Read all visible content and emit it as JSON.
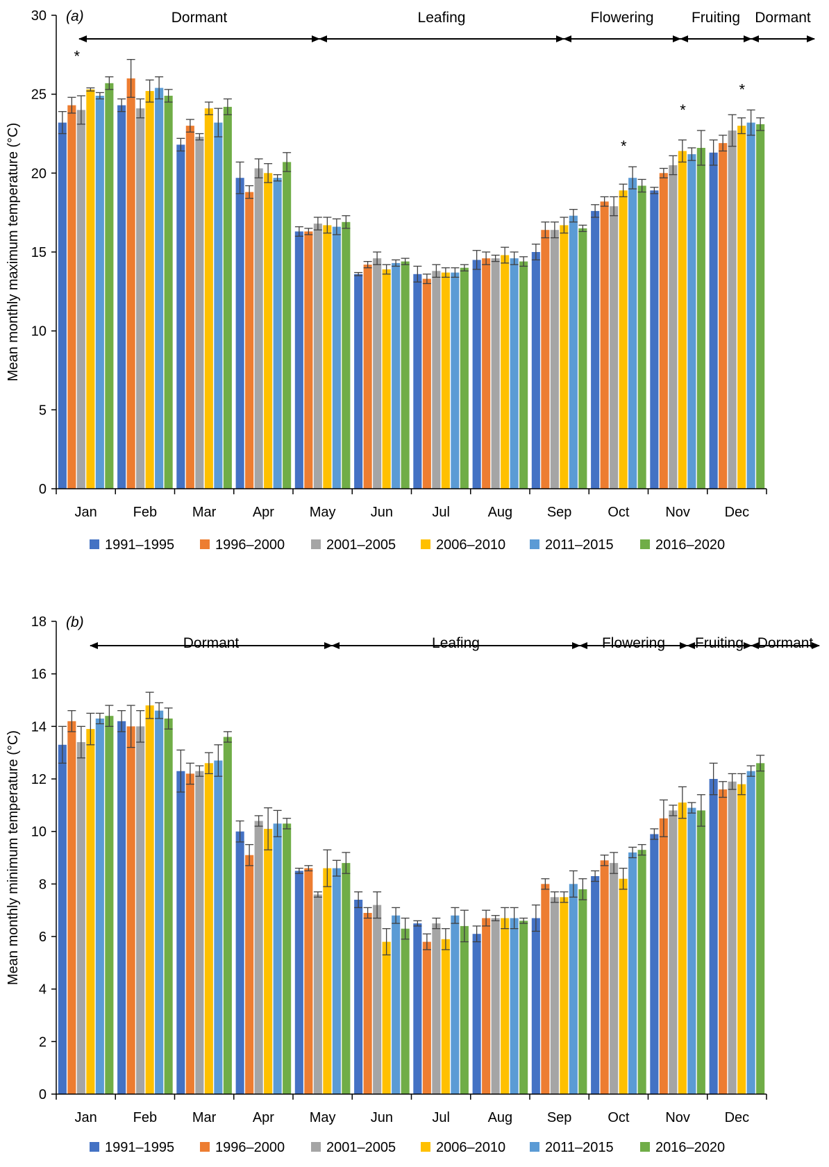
{
  "colors": {
    "series": [
      "#4472C4",
      "#ED7D31",
      "#A5A5A5",
      "#FFC000",
      "#5B9BD5",
      "#70AD47"
    ],
    "axis": "#000000",
    "errorbar": "#404040"
  },
  "chart_data": [
    {
      "type": "bar",
      "panel_label": "(a)",
      "ylabel": "Mean monthly maximum temperature (°C)",
      "ylim": [
        0,
        30
      ],
      "yticks": [
        0,
        5,
        10,
        15,
        20,
        25,
        30
      ],
      "categories": [
        "Jan",
        "Feb",
        "Mar",
        "Apr",
        "May",
        "Jun",
        "Jul",
        "Aug",
        "Sep",
        "Oct",
        "Nov",
        "Dec"
      ],
      "series": [
        {
          "name": "1991–1995",
          "values": [
            23.2,
            24.3,
            21.8,
            19.7,
            16.3,
            13.6,
            13.6,
            14.5,
            15.0,
            17.6,
            18.9,
            21.3
          ],
          "errors": [
            0.7,
            0.4,
            0.4,
            1.0,
            0.3,
            0.1,
            0.5,
            0.6,
            0.5,
            0.4,
            0.2,
            0.8
          ]
        },
        {
          "name": "1996–2000",
          "values": [
            24.3,
            26.0,
            23.0,
            18.8,
            16.3,
            14.2,
            13.3,
            14.6,
            16.4,
            18.2,
            20.0,
            21.9
          ],
          "errors": [
            0.5,
            1.2,
            0.4,
            0.4,
            0.2,
            0.2,
            0.3,
            0.4,
            0.5,
            0.3,
            0.3,
            0.5
          ]
        },
        {
          "name": "2001–2005",
          "values": [
            24.0,
            24.1,
            22.3,
            20.3,
            16.8,
            14.6,
            13.8,
            14.6,
            16.4,
            17.9,
            20.5,
            22.7
          ],
          "errors": [
            0.9,
            0.6,
            0.2,
            0.6,
            0.4,
            0.4,
            0.4,
            0.2,
            0.5,
            0.6,
            0.6,
            1.0
          ]
        },
        {
          "name": "2006–2010",
          "values": [
            25.3,
            25.2,
            24.1,
            20.0,
            16.7,
            13.9,
            13.7,
            14.8,
            16.7,
            18.9,
            21.4,
            23.0
          ],
          "errors": [
            0.1,
            0.7,
            0.4,
            0.6,
            0.5,
            0.3,
            0.3,
            0.5,
            0.5,
            0.4,
            0.7,
            0.5
          ]
        },
        {
          "name": "2011–2015",
          "values": [
            24.9,
            25.4,
            23.2,
            19.7,
            16.6,
            14.3,
            13.7,
            14.6,
            17.3,
            19.7,
            21.2,
            23.2
          ],
          "errors": [
            0.2,
            0.7,
            0.9,
            0.2,
            0.5,
            0.2,
            0.3,
            0.4,
            0.4,
            0.7,
            0.4,
            0.8
          ]
        },
        {
          "name": "2016–2020",
          "values": [
            25.7,
            24.9,
            24.2,
            20.7,
            16.9,
            14.4,
            14.0,
            14.4,
            16.5,
            19.2,
            21.6,
            23.1
          ],
          "errors": [
            0.4,
            0.4,
            0.5,
            0.6,
            0.4,
            0.2,
            0.2,
            0.3,
            0.2,
            0.4,
            1.1,
            0.4
          ]
        }
      ],
      "stages": [
        {
          "label": "Dormant",
          "from": 0,
          "to": 4
        },
        {
          "label": "Leafing",
          "from": 4,
          "to": 8
        },
        {
          "label": "Flowering",
          "from": 8,
          "to": 10
        },
        {
          "label": "Fruiting",
          "from": 10,
          "to": 11
        },
        {
          "label": "Dormant",
          "from": 11,
          "to": 12
        }
      ],
      "significance": [
        {
          "month": 0,
          "label": "*"
        },
        {
          "month": 9,
          "label": "*"
        },
        {
          "month": 10,
          "label": "*"
        },
        {
          "month": 11,
          "label": "*"
        }
      ],
      "legend_position": "bottom"
    },
    {
      "type": "bar",
      "panel_label": "(b)",
      "ylabel": "Mean monthly minimum temperature (°C)",
      "ylim": [
        0,
        18
      ],
      "yticks": [
        0,
        2,
        4,
        6,
        8,
        10,
        12,
        14,
        16,
        18
      ],
      "categories": [
        "Jan",
        "Feb",
        "Mar",
        "Apr",
        "May",
        "Jun",
        "Jul",
        "Aug",
        "Sep",
        "Oct",
        "Nov",
        "Dec"
      ],
      "series": [
        {
          "name": "1991–1995",
          "values": [
            13.3,
            14.2,
            12.3,
            10.0,
            8.5,
            7.4,
            6.5,
            6.1,
            6.7,
            8.3,
            9.9,
            12.0
          ],
          "errors": [
            0.7,
            0.4,
            0.8,
            0.4,
            0.1,
            0.3,
            0.1,
            0.3,
            0.5,
            0.2,
            0.2,
            0.6
          ]
        },
        {
          "name": "1996–2000",
          "values": [
            14.2,
            14.0,
            12.2,
            9.1,
            8.6,
            6.9,
            5.8,
            6.7,
            8.0,
            8.9,
            10.5,
            11.6
          ],
          "errors": [
            0.4,
            0.8,
            0.4,
            0.4,
            0.1,
            0.2,
            0.3,
            0.3,
            0.2,
            0.2,
            0.7,
            0.3
          ]
        },
        {
          "name": "2001–2005",
          "values": [
            13.4,
            14.0,
            12.3,
            10.4,
            7.6,
            7.2,
            6.5,
            6.7,
            7.5,
            8.8,
            10.8,
            11.9
          ],
          "errors": [
            0.6,
            0.6,
            0.2,
            0.2,
            0.1,
            0.5,
            0.2,
            0.1,
            0.2,
            0.4,
            0.2,
            0.3
          ]
        },
        {
          "name": "2006–2010",
          "values": [
            13.9,
            14.8,
            12.6,
            10.1,
            8.6,
            5.8,
            5.9,
            6.7,
            7.5,
            8.2,
            11.1,
            11.8
          ],
          "errors": [
            0.6,
            0.5,
            0.4,
            0.8,
            0.7,
            0.5,
            0.4,
            0.4,
            0.2,
            0.4,
            0.6,
            0.4
          ]
        },
        {
          "name": "2011–2015",
          "values": [
            14.3,
            14.6,
            12.7,
            10.3,
            8.6,
            6.8,
            6.8,
            6.7,
            8.0,
            9.2,
            10.9,
            12.3
          ],
          "errors": [
            0.2,
            0.3,
            0.6,
            0.5,
            0.3,
            0.3,
            0.3,
            0.4,
            0.5,
            0.2,
            0.2,
            0.2
          ]
        },
        {
          "name": "2016–2020",
          "values": [
            14.4,
            14.3,
            13.6,
            10.3,
            8.8,
            6.3,
            6.4,
            6.6,
            7.8,
            9.3,
            10.8,
            12.6
          ],
          "errors": [
            0.4,
            0.4,
            0.2,
            0.2,
            0.4,
            0.4,
            0.6,
            0.1,
            0.4,
            0.2,
            0.6,
            0.3
          ]
        }
      ],
      "stages": [
        {
          "label": "Dormant",
          "from": 0,
          "to": 4
        },
        {
          "label": "Leafing",
          "from": 4,
          "to": 8
        },
        {
          "label": "Flowering",
          "from": 8,
          "to": 10
        },
        {
          "label": "Fruiting",
          "from": 10,
          "to": 11
        },
        {
          "label": "Dormant",
          "from": 11,
          "to": 12
        }
      ],
      "significance": [],
      "legend_position": "bottom"
    }
  ]
}
